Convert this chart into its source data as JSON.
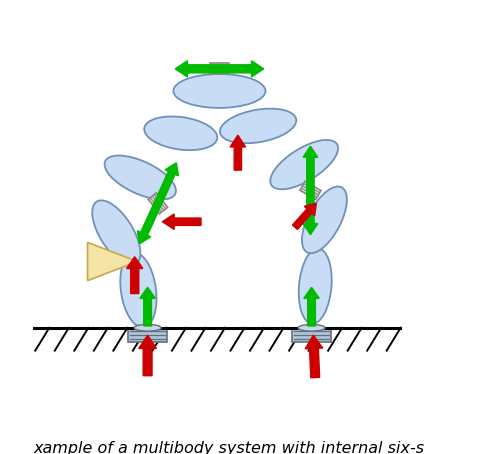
{
  "figure_width": 4.86,
  "figure_height": 4.54,
  "dpi": 100,
  "bg_color": "#ffffff",
  "link_color": "#c8ddf5",
  "link_edge_color": "#7090b8",
  "joint_color": "#d8d8d8",
  "joint_edge_color": "#888888",
  "base_color": "#b0c4d8",
  "base_edge_color": "#607080",
  "green_arrow_color": "#00bb00",
  "red_arrow_color": "#cc0000",
  "triangle_color": "#f5e4a8",
  "triangle_edge_color": "#c8a848",
  "caption_text": "xample of a multibody system with internal six-s",
  "caption_fontsize": 11.5,
  "xlim": [
    0,
    10
  ],
  "ylim": [
    -2.0,
    9.5
  ]
}
